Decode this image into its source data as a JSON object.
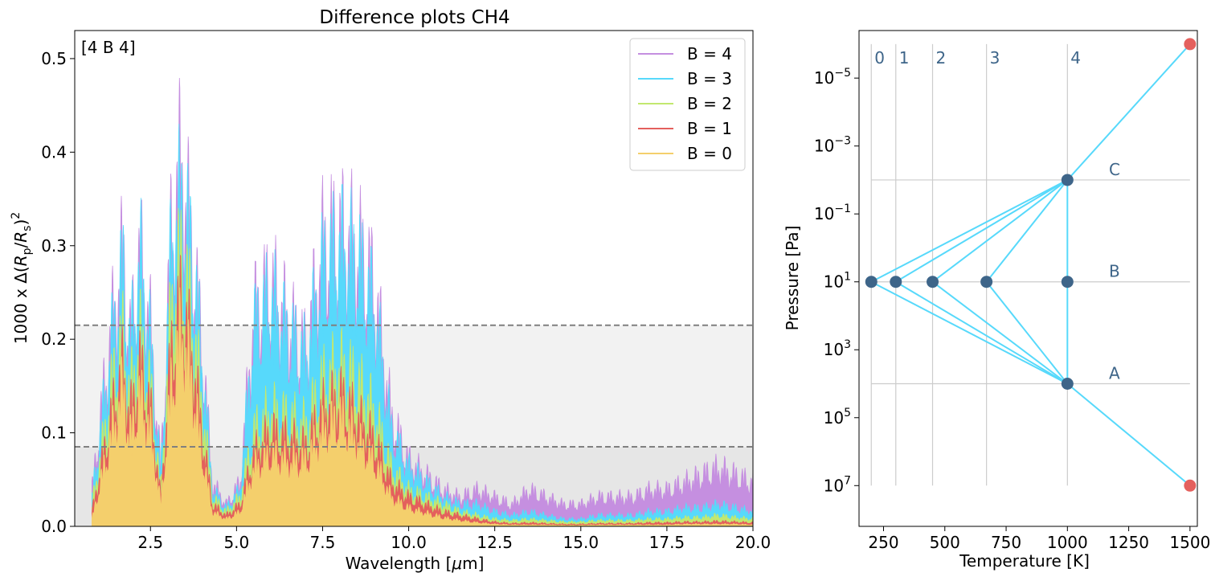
{
  "chart_data": [
    {
      "type": "area",
      "title": "Difference plots CH4",
      "xlabel": "Wavelength [$\\mu$m]",
      "ylabel": "1000 x Δ(R_p/R_s)^2",
      "annotation": "[4 B 4]",
      "xlim": [
        0.3,
        20.0
      ],
      "ylim": [
        0.0,
        0.53
      ],
      "xticks": [
        "2.5",
        "5.0",
        "7.5",
        "10.0",
        "12.5",
        "15.0",
        "17.5",
        "20.0"
      ],
      "yticks": [
        "0.0",
        "0.1",
        "0.2",
        "0.3",
        "0.4",
        "0.5"
      ],
      "legend_position": "top-right",
      "thresholds": [
        0.085,
        0.215
      ],
      "series": [
        {
          "name": "B = 4",
          "color": "#c58fe0",
          "x": [
            0.8,
            1.1,
            1.4,
            1.7,
            1.9,
            2.2,
            2.5,
            2.8,
            3.1,
            3.4,
            3.7,
            4.0,
            4.3,
            4.7,
            5.1,
            5.5,
            6.0,
            6.5,
            7.0,
            7.5,
            8.0,
            8.5,
            9.0,
            9.5,
            10.0,
            10.5,
            11.0,
            11.5,
            12.0,
            12.5,
            13.0,
            13.5,
            14.0,
            14.5,
            15.0,
            15.5,
            16.0,
            16.5,
            17.0,
            17.5,
            18.0,
            18.5,
            19.0,
            19.5,
            20.0
          ],
          "y": [
            0.05,
            0.17,
            0.28,
            0.37,
            0.25,
            0.37,
            0.27,
            0.08,
            0.4,
            0.5,
            0.38,
            0.25,
            0.06,
            0.03,
            0.06,
            0.29,
            0.33,
            0.28,
            0.24,
            0.38,
            0.4,
            0.38,
            0.33,
            0.15,
            0.09,
            0.07,
            0.05,
            0.04,
            0.05,
            0.04,
            0.03,
            0.05,
            0.04,
            0.03,
            0.03,
            0.04,
            0.04,
            0.04,
            0.05,
            0.05,
            0.06,
            0.07,
            0.08,
            0.07,
            0.06
          ]
        },
        {
          "name": "B = 3",
          "color": "#57d9fb",
          "x": [
            0.8,
            1.1,
            1.4,
            1.7,
            1.9,
            2.2,
            2.5,
            2.8,
            3.1,
            3.4,
            3.7,
            4.0,
            4.3,
            4.7,
            5.1,
            5.5,
            6.0,
            6.5,
            7.0,
            7.5,
            8.0,
            8.5,
            9.0,
            9.5,
            10.0,
            10.5,
            11.0,
            11.5,
            12.0,
            12.5,
            13.0,
            13.5,
            14.0,
            14.5,
            15.0,
            15.5,
            16.0,
            16.5,
            17.0,
            17.5,
            18.0,
            18.5,
            19.0,
            19.5,
            20.0
          ],
          "y": [
            0.04,
            0.15,
            0.26,
            0.35,
            0.24,
            0.36,
            0.25,
            0.07,
            0.38,
            0.45,
            0.37,
            0.23,
            0.05,
            0.025,
            0.05,
            0.27,
            0.31,
            0.26,
            0.23,
            0.35,
            0.38,
            0.36,
            0.3,
            0.13,
            0.08,
            0.06,
            0.04,
            0.03,
            0.03,
            0.02,
            0.015,
            0.02,
            0.015,
            0.01,
            0.01,
            0.015,
            0.015,
            0.015,
            0.02,
            0.02,
            0.025,
            0.025,
            0.03,
            0.025,
            0.02
          ]
        },
        {
          "name": "B = 2",
          "color": "#c2e86f",
          "x": [
            0.8,
            1.1,
            1.4,
            1.7,
            1.9,
            2.2,
            2.5,
            2.8,
            3.1,
            3.4,
            3.7,
            4.0,
            4.3,
            4.7,
            5.1,
            5.5,
            6.0,
            6.5,
            7.0,
            7.5,
            8.0,
            8.5,
            9.0,
            9.5,
            10.0,
            10.5,
            11.0,
            11.5,
            12.0,
            12.5,
            13.0,
            13.5,
            14.0,
            14.5,
            15.0,
            15.5,
            16.0,
            16.5,
            17.0,
            17.5,
            18.0,
            18.5,
            19.0,
            19.5,
            20.0
          ],
          "y": [
            0.03,
            0.11,
            0.2,
            0.26,
            0.18,
            0.26,
            0.19,
            0.05,
            0.3,
            0.37,
            0.29,
            0.17,
            0.04,
            0.02,
            0.04,
            0.13,
            0.16,
            0.15,
            0.14,
            0.2,
            0.22,
            0.2,
            0.16,
            0.08,
            0.05,
            0.04,
            0.03,
            0.02,
            0.015,
            0.01,
            0.008,
            0.01,
            0.008,
            0.006,
            0.006,
            0.008,
            0.008,
            0.008,
            0.01,
            0.01,
            0.012,
            0.012,
            0.015,
            0.012,
            0.01
          ]
        },
        {
          "name": "B = 1",
          "color": "#e4605d",
          "x": [
            0.8,
            1.1,
            1.4,
            1.7,
            1.9,
            2.2,
            2.5,
            2.8,
            3.1,
            3.4,
            3.7,
            4.0,
            4.3,
            4.7,
            5.1,
            5.5,
            6.0,
            6.5,
            7.0,
            7.5,
            8.0,
            8.5,
            9.0,
            9.5,
            10.0,
            10.5,
            11.0,
            11.5,
            12.0,
            12.5,
            13.0,
            13.5,
            14.0,
            14.5,
            15.0,
            15.5,
            16.0,
            16.5,
            17.0,
            17.5,
            18.0,
            18.5,
            19.0,
            19.5,
            20.0
          ],
          "y": [
            0.02,
            0.09,
            0.16,
            0.22,
            0.15,
            0.22,
            0.16,
            0.04,
            0.24,
            0.31,
            0.24,
            0.13,
            0.03,
            0.015,
            0.03,
            0.1,
            0.13,
            0.12,
            0.11,
            0.16,
            0.18,
            0.15,
            0.12,
            0.06,
            0.04,
            0.03,
            0.02,
            0.015,
            0.01,
            0.006,
            0.004,
            0.005,
            0.004,
            0.003,
            0.003,
            0.004,
            0.004,
            0.004,
            0.005,
            0.005,
            0.006,
            0.006,
            0.007,
            0.006,
            0.005
          ]
        },
        {
          "name": "B = 0",
          "color": "#f4cf6c",
          "x": [
            0.8,
            1.1,
            1.4,
            1.7,
            1.9,
            2.2,
            2.5,
            2.8,
            3.1,
            3.4,
            3.7,
            4.0,
            4.3,
            4.7,
            5.1,
            5.5,
            6.0,
            6.5,
            7.0,
            7.5,
            8.0,
            8.5,
            9.0,
            9.5,
            10.0,
            10.5,
            11.0,
            11.5,
            12.0,
            12.5,
            13.0,
            13.5,
            14.0,
            14.5,
            15.0,
            15.5,
            16.0,
            16.5,
            17.0,
            17.5,
            18.0,
            18.5,
            19.0,
            19.5,
            20.0
          ],
          "y": [
            0.01,
            0.07,
            0.13,
            0.19,
            0.12,
            0.18,
            0.13,
            0.03,
            0.19,
            0.27,
            0.2,
            0.1,
            0.02,
            0.01,
            0.02,
            0.08,
            0.1,
            0.09,
            0.09,
            0.13,
            0.15,
            0.12,
            0.09,
            0.04,
            0.025,
            0.018,
            0.012,
            0.008,
            0.005,
            0.003,
            0.002,
            0.002,
            0.002,
            0.0015,
            0.0015,
            0.002,
            0.002,
            0.002,
            0.002,
            0.002,
            0.003,
            0.003,
            0.003,
            0.003,
            0.002
          ]
        }
      ]
    },
    {
      "type": "scatter",
      "xlabel": "Temperature [K]",
      "ylabel": "Pressure [Pa]",
      "xlim": [
        150,
        1530
      ],
      "ylog_range": [
        8.2,
        -6.4
      ],
      "log_scale_y": true,
      "y_inverted": true,
      "xticks": [
        250,
        500,
        750,
        1000,
        1250,
        1500
      ],
      "yticks": [
        {
          "exp": -5,
          "label": "10^-5"
        },
        {
          "exp": -3,
          "label": "10^-3"
        },
        {
          "exp": -1,
          "label": "10^-1"
        },
        {
          "exp": 1,
          "label": "10^1"
        },
        {
          "exp": 3,
          "label": "10^3"
        },
        {
          "exp": 5,
          "label": "10^5"
        },
        {
          "exp": 7,
          "label": "10^7"
        }
      ],
      "vertical_lines": [
        {
          "label": "0",
          "t": 200
        },
        {
          "label": "1",
          "t": 300
        },
        {
          "label": "2",
          "t": 450
        },
        {
          "label": "3",
          "t": 670
        },
        {
          "label": "4",
          "t": 1000
        }
      ],
      "horizontal_lines": [
        {
          "label": "C",
          "p_exp": -2.0
        },
        {
          "label": "B",
          "p_exp": 1.0
        },
        {
          "label": "A",
          "p_exp": 4.0
        }
      ],
      "node_color": "#3e6589",
      "edge_color": "#57d9fb",
      "endpoint_color": "#e4605d",
      "nodes": [
        {
          "t": 200,
          "p_exp": 1.0
        },
        {
          "t": 300,
          "p_exp": 1.0
        },
        {
          "t": 450,
          "p_exp": 1.0
        },
        {
          "t": 670,
          "p_exp": 1.0
        },
        {
          "t": 1000,
          "p_exp": 1.0
        },
        {
          "t": 1000,
          "p_exp": -2.0
        },
        {
          "t": 1000,
          "p_exp": 4.0
        }
      ],
      "endpoints": [
        {
          "t": 1500,
          "p_exp": -6.0
        },
        {
          "t": 1500,
          "p_exp": 7.0
        }
      ]
    }
  ]
}
